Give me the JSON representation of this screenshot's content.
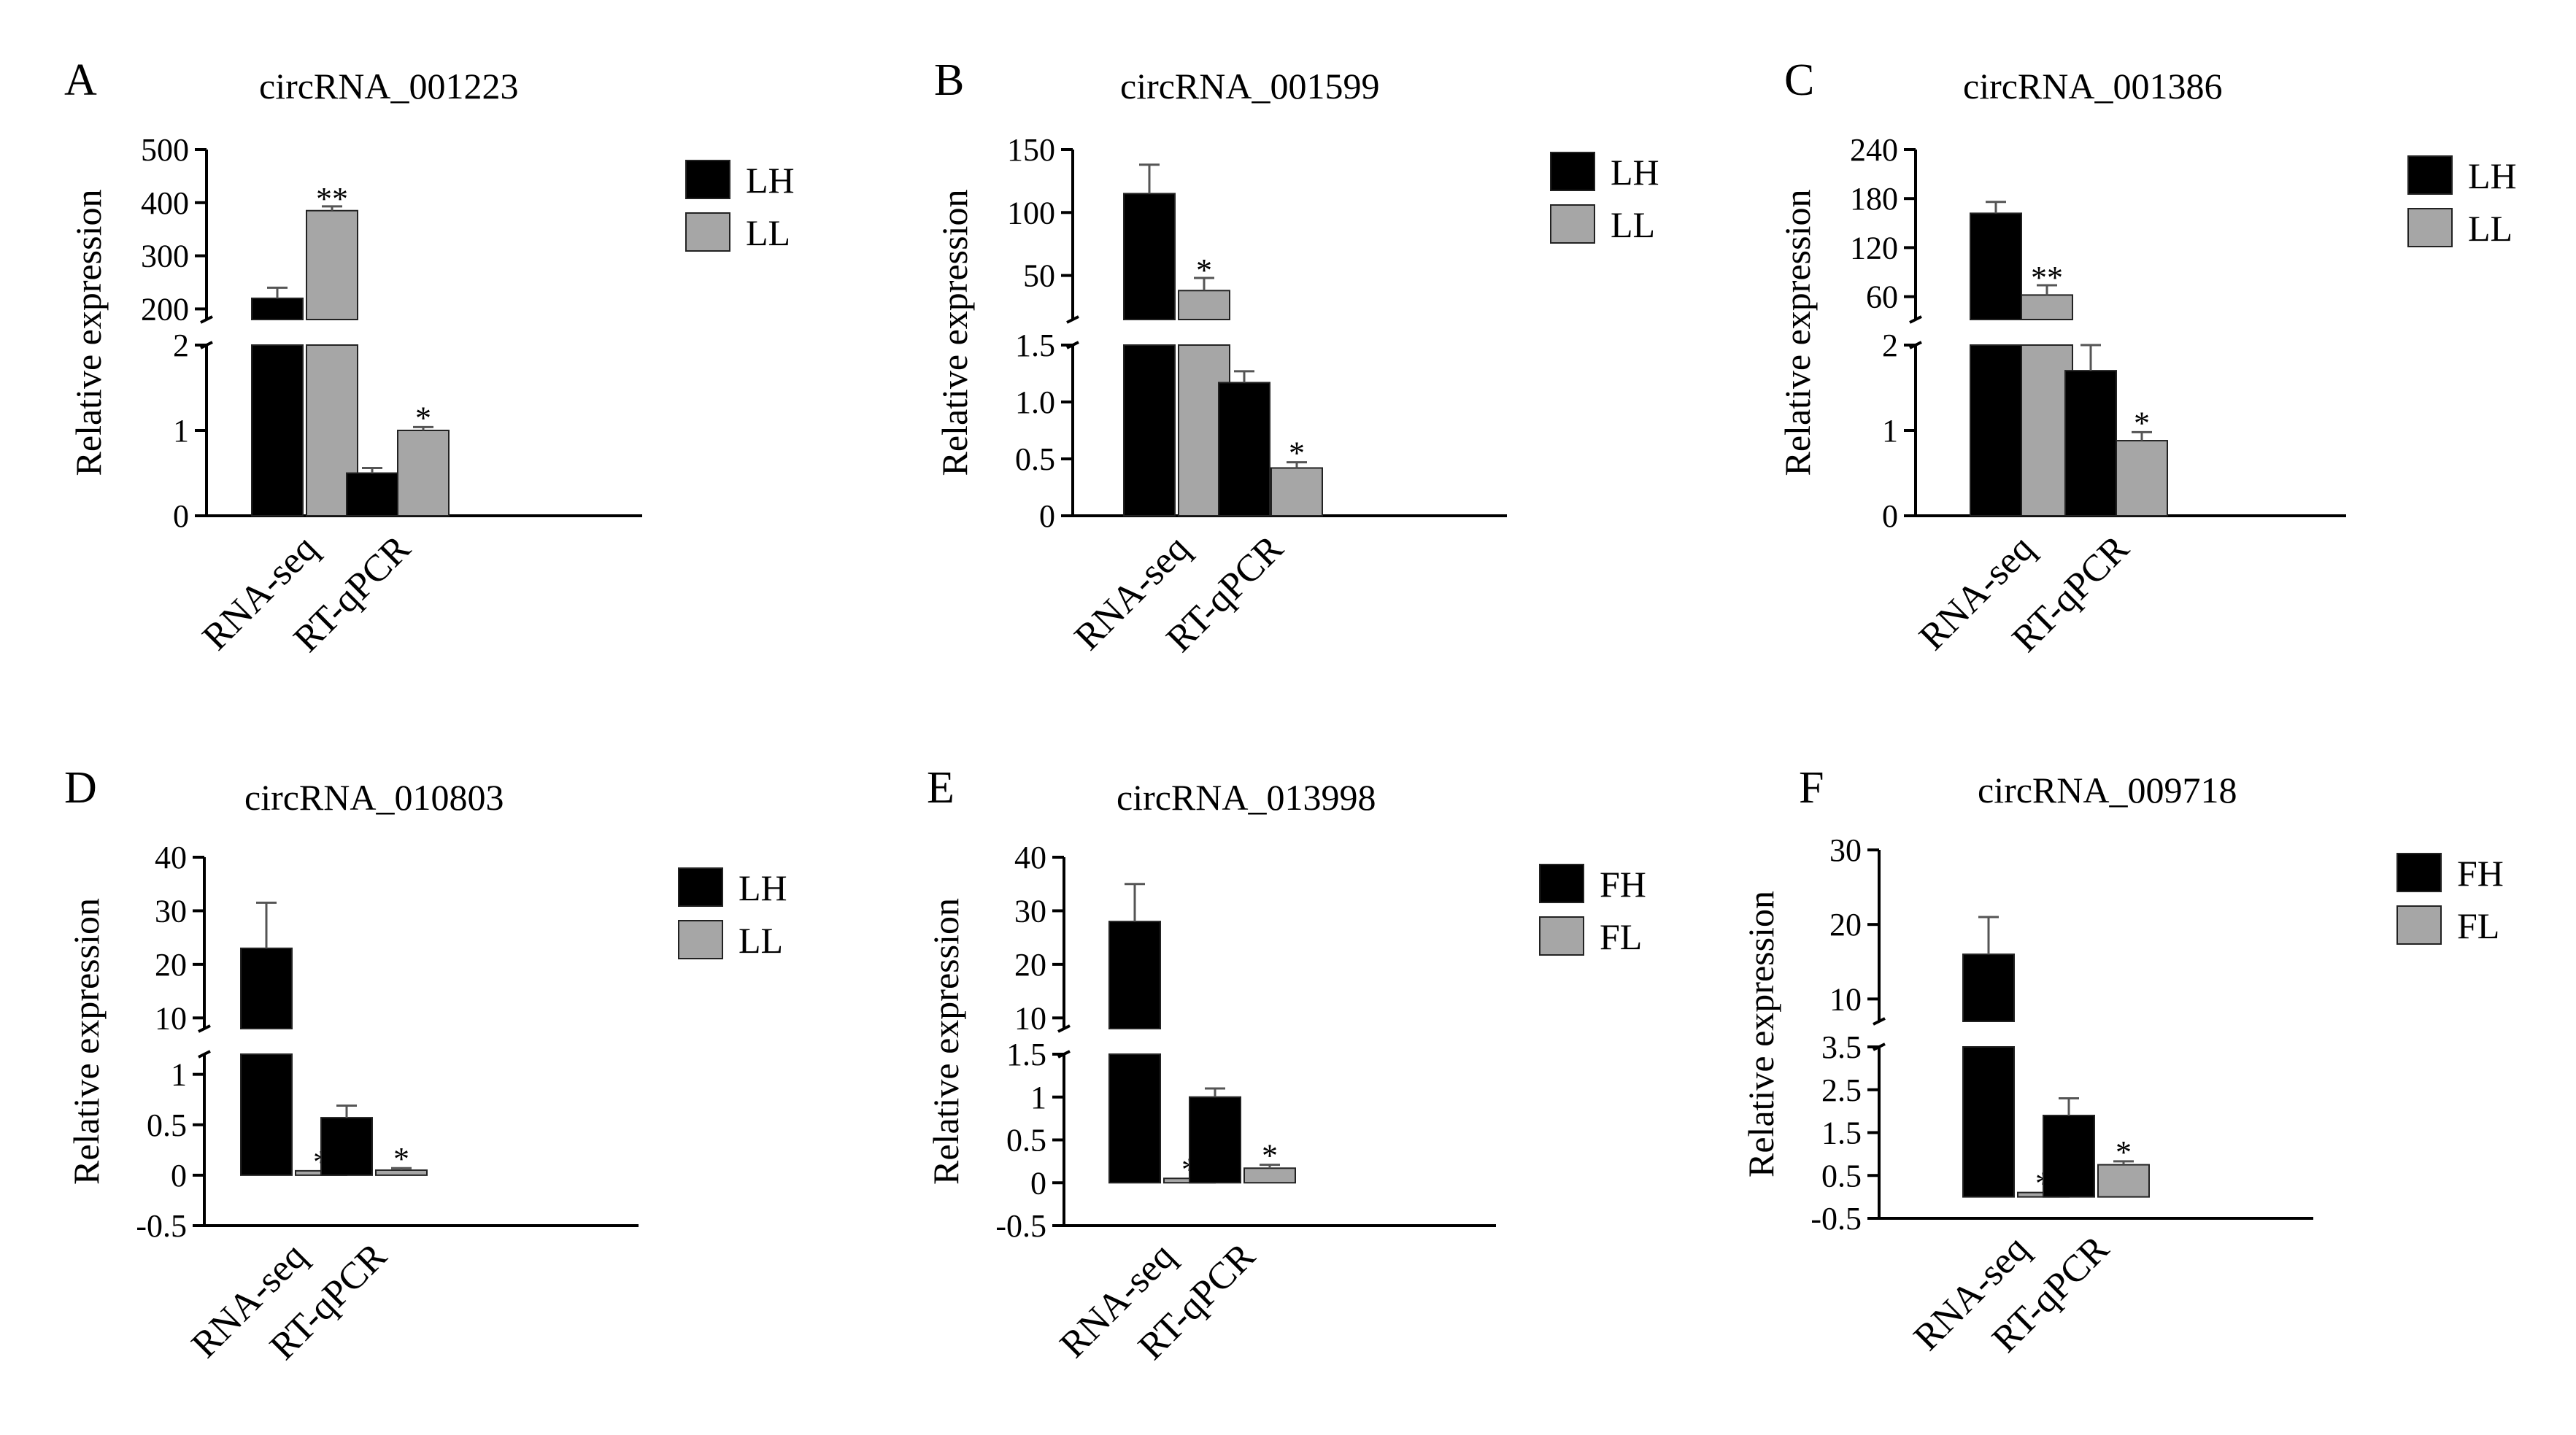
{
  "figure": {
    "ylabel": "Relative expression"
  },
  "colors": {
    "high": "#000000",
    "low": "#a6a6a6",
    "axis": "#000000",
    "error": "#555555"
  },
  "chart_data": [
    {
      "panel": "A",
      "type": "bar",
      "title": "circRNA_001223",
      "categories": [
        "RNA-seq",
        "RT-qPCR"
      ],
      "legend": [
        "LH",
        "LL"
      ],
      "series": [
        {
          "name": "LH",
          "values": [
            220,
            0.5
          ],
          "errors": [
            20,
            0.06
          ],
          "significance": [
            "",
            ""
          ]
        },
        {
          "name": "LL",
          "values": [
            385,
            1.0
          ],
          "errors": [
            8,
            0.04
          ],
          "significance": [
            "**",
            "*"
          ]
        }
      ],
      "axis_segments": [
        {
          "range": [
            0,
            2
          ],
          "ticks": [
            0,
            1,
            2
          ],
          "tick_labels": [
            "0",
            "1",
            "2"
          ]
        },
        {
          "range": [
            180,
            500
          ],
          "ticks": [
            200,
            300,
            400,
            500
          ],
          "tick_labels": [
            "200",
            "300",
            "400",
            "500"
          ]
        }
      ]
    },
    {
      "panel": "B",
      "type": "bar",
      "title": "circRNA_001599",
      "categories": [
        "RNA-seq",
        "RT-qPCR"
      ],
      "legend": [
        "LH",
        "LL"
      ],
      "series": [
        {
          "name": "LH",
          "values": [
            115,
            1.17
          ],
          "errors": [
            23,
            0.1
          ],
          "significance": [
            "",
            ""
          ]
        },
        {
          "name": "LL",
          "values": [
            38,
            0.42
          ],
          "errors": [
            10,
            0.05
          ],
          "significance": [
            "*",
            "*"
          ]
        }
      ],
      "axis_segments": [
        {
          "range": [
            0,
            1.5
          ],
          "ticks": [
            0,
            0.5,
            1.0,
            1.5
          ],
          "tick_labels": [
            "0",
            "0.5",
            "1.0",
            "1.5"
          ]
        },
        {
          "range": [
            15,
            150
          ],
          "ticks": [
            50,
            100,
            150
          ],
          "tick_labels": [
            "50",
            "100",
            "150"
          ]
        }
      ]
    },
    {
      "panel": "C",
      "type": "bar",
      "title": "circRNA_001386",
      "categories": [
        "RNA-seq",
        "RT-qPCR"
      ],
      "legend": [
        "LH",
        "LL"
      ],
      "series": [
        {
          "name": "LH",
          "values": [
            162,
            1.7
          ],
          "errors": [
            14,
            0.3
          ],
          "significance": [
            "",
            ""
          ]
        },
        {
          "name": "LL",
          "values": [
            62,
            0.88
          ],
          "errors": [
            12,
            0.1
          ],
          "significance": [
            "**",
            "*"
          ]
        }
      ],
      "axis_segments": [
        {
          "range": [
            0,
            2
          ],
          "ticks": [
            0,
            1,
            2
          ],
          "tick_labels": [
            "0",
            "1",
            "2"
          ]
        },
        {
          "range": [
            32,
            240
          ],
          "ticks": [
            60,
            120,
            180,
            240
          ],
          "tick_labels": [
            "60",
            "120",
            "180",
            "240"
          ]
        }
      ]
    },
    {
      "panel": "D",
      "type": "bar",
      "title": "circRNA_010803",
      "categories": [
        "RNA-seq",
        "RT-qPCR"
      ],
      "legend": [
        "LH",
        "LL"
      ],
      "series": [
        {
          "name": "LH",
          "values": [
            23,
            0.57
          ],
          "errors": [
            8.5,
            0.12
          ],
          "significance": [
            "",
            ""
          ]
        },
        {
          "name": "LL",
          "values": [
            0,
            0.05
          ],
          "errors": [
            0,
            0.02
          ],
          "significance": [
            "*",
            "*"
          ]
        }
      ],
      "axis_segments": [
        {
          "range": [
            -0.5,
            1.2
          ],
          "ticks": [
            -0.5,
            0,
            0.5,
            1
          ],
          "tick_labels": [
            "-0.5",
            "0",
            "0.5",
            "1"
          ]
        },
        {
          "range": [
            8,
            40
          ],
          "ticks": [
            10,
            20,
            30,
            40
          ],
          "tick_labels": [
            "10",
            "20",
            "30",
            "40"
          ]
        }
      ]
    },
    {
      "panel": "E",
      "type": "bar",
      "title": "circRNA_013998",
      "categories": [
        "RNA-seq",
        "RT-qPCR"
      ],
      "legend": [
        "FH",
        "FL"
      ],
      "series": [
        {
          "name": "FH",
          "values": [
            28,
            1.0
          ],
          "errors": [
            7,
            0.1
          ],
          "significance": [
            "",
            ""
          ]
        },
        {
          "name": "FL",
          "values": [
            0,
            0.17
          ],
          "errors": [
            0,
            0.04
          ],
          "significance": [
            "*",
            "*"
          ]
        }
      ],
      "axis_segments": [
        {
          "range": [
            -0.5,
            1.5
          ],
          "ticks": [
            -0.5,
            0,
            0.5,
            1,
            1.5
          ],
          "tick_labels": [
            "-0.5",
            "0",
            "0.5",
            "1",
            "1.5"
          ]
        },
        {
          "range": [
            8,
            40
          ],
          "ticks": [
            10,
            20,
            30,
            40
          ],
          "tick_labels": [
            "10",
            "20",
            "30",
            "40"
          ]
        }
      ]
    },
    {
      "panel": "F",
      "type": "bar",
      "title": "circRNA_009718",
      "categories": [
        "RNA-seq",
        "RT-qPCR"
      ],
      "legend": [
        "FH",
        "FL"
      ],
      "series": [
        {
          "name": "FH",
          "values": [
            16,
            1.9
          ],
          "errors": [
            5,
            0.4
          ],
          "significance": [
            "",
            ""
          ]
        },
        {
          "name": "FL",
          "values": [
            0.05,
            0.75
          ],
          "errors": [
            0,
            0.08
          ],
          "significance": [
            "*",
            "*"
          ]
        }
      ],
      "axis_segments": [
        {
          "range": [
            -0.5,
            3.5
          ],
          "ticks": [
            -0.5,
            0.5,
            1.5,
            2.5,
            3.5
          ],
          "tick_labels": [
            "-0.5",
            "0.5",
            "1.5",
            "2.5",
            "3.5"
          ]
        },
        {
          "range": [
            7,
            30
          ],
          "ticks": [
            10,
            20,
            30
          ],
          "tick_labels": [
            "10",
            "20",
            "30"
          ]
        }
      ]
    }
  ]
}
